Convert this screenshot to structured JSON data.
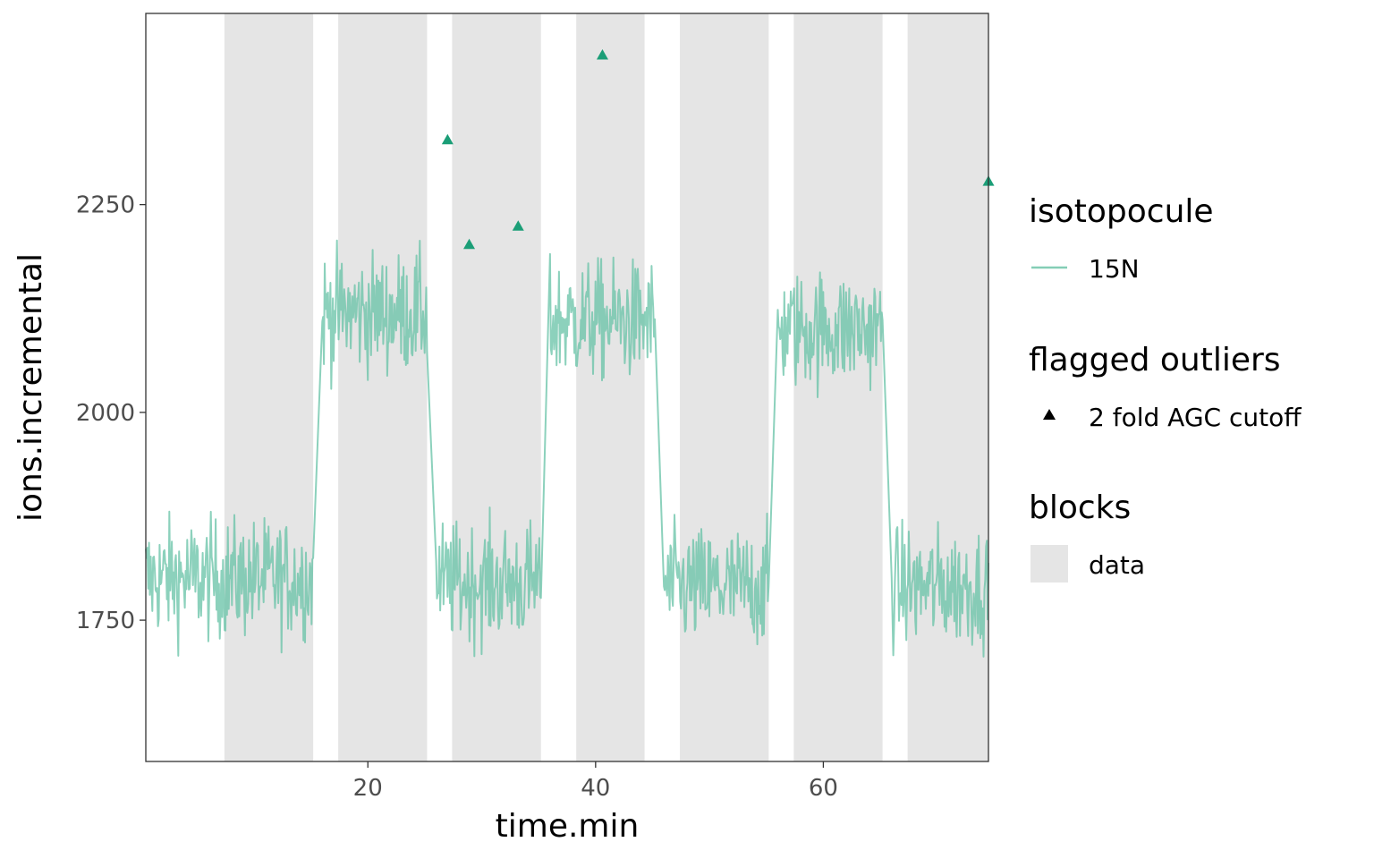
{
  "chart_data": {
    "type": "line",
    "xlabel": "time.min",
    "ylabel": "ions.incremental",
    "xlim": [
      0.5,
      74.5
    ],
    "ylim": [
      1580,
      2480
    ],
    "x_ticks": [
      20,
      40,
      60
    ],
    "y_ticks": [
      1750,
      2000,
      2250
    ],
    "grid": false,
    "legend_position": "right",
    "colors": {
      "series": "#66c2a5",
      "outlier": "#1b9e77",
      "block": "#e5e5e5"
    },
    "legend": {
      "isotopocule": {
        "title": "isotopocule",
        "label": "15N"
      },
      "outliers": {
        "title": "flagged outliers",
        "label": "2 fold AGC cutoff"
      },
      "blocks": {
        "title": "blocks",
        "label": "data"
      }
    },
    "blocks": [
      {
        "start": 7.4,
        "end": 15.2
      },
      {
        "start": 17.4,
        "end": 25.2
      },
      {
        "start": 27.4,
        "end": 35.2
      },
      {
        "start": 38.3,
        "end": 44.3
      },
      {
        "start": 47.4,
        "end": 55.2
      },
      {
        "start": 57.4,
        "end": 65.2
      },
      {
        "start": 67.4,
        "end": 74.5
      }
    ],
    "series": [
      {
        "name": "15N",
        "baseline_segments": [
          {
            "start": 0.5,
            "end": 15.2,
            "mean": 1800
          },
          {
            "start": 16.0,
            "end": 25.2,
            "mean": 2120
          },
          {
            "start": 26.0,
            "end": 35.2,
            "mean": 1795
          },
          {
            "start": 36.0,
            "end": 45.2,
            "mean": 2110
          },
          {
            "start": 46.0,
            "end": 55.2,
            "mean": 1790
          },
          {
            "start": 56.0,
            "end": 65.2,
            "mean": 2100
          },
          {
            "start": 66.0,
            "end": 74.5,
            "mean": 1790
          }
        ],
        "amplitude": 65,
        "points_per_min": 14
      }
    ],
    "outliers": [
      {
        "x": 27.0,
        "y": 2328
      },
      {
        "x": 28.9,
        "y": 2202
      },
      {
        "x": 33.2,
        "y": 2224
      },
      {
        "x": 40.6,
        "y": 2430
      },
      {
        "x": 74.5,
        "y": 2278
      }
    ]
  }
}
